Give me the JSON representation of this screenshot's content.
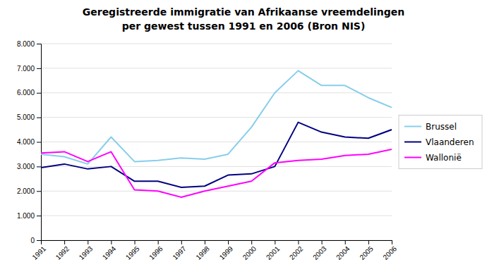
{
  "chart_data": {
    "type": "line",
    "title": "Geregistreerde immigratie van Afrikaanse vreemdelingen",
    "subtitle": "per gewest tussen 1991 en 2006 (Bron NIS)",
    "x": [
      1991,
      1992,
      1993,
      1994,
      1995,
      1996,
      1997,
      1998,
      1999,
      2000,
      2001,
      2002,
      2003,
      2004,
      2005,
      2006
    ],
    "xlim": [
      1991,
      2006
    ],
    "xticks": [
      1991,
      1992,
      1993,
      1994,
      1995,
      1996,
      1997,
      1998,
      1999,
      2000,
      2001,
      2002,
      2003,
      2004,
      2005,
      2006
    ],
    "ylim": [
      0,
      8000
    ],
    "yticks": [
      0,
      {
        "value": 1000,
        "label": "1.000"
      },
      {
        "value": 2000,
        "label": "2.000"
      },
      {
        "value": 3000,
        "label": "3.000"
      },
      {
        "value": 4000,
        "label": "4.000"
      },
      {
        "value": 5000,
        "label": "5.000"
      },
      {
        "value": 6000,
        "label": "6.000"
      },
      {
        "value": 7000,
        "label": "7.000"
      },
      {
        "value": 8000,
        "label": "8.000"
      }
    ],
    "grid": true,
    "legend": "right",
    "series": [
      {
        "name": "Brussel",
        "color": "#87CEEB",
        "values": [
          3500,
          3400,
          3100,
          4200,
          3200,
          3250,
          3350,
          3300,
          3500,
          4600,
          6000,
          6900,
          6300,
          6300,
          5800,
          5400
        ]
      },
      {
        "name": "Vlaanderen",
        "color": "#000080",
        "values": [
          2950,
          3100,
          2900,
          3000,
          2400,
          2400,
          2150,
          2200,
          2650,
          2700,
          3000,
          4800,
          4400,
          4200,
          4150,
          4500
        ]
      },
      {
        "name": "Wallonië",
        "color": "#FF00FF",
        "values": [
          3550,
          3600,
          3200,
          3600,
          2050,
          2000,
          1750,
          2000,
          2200,
          2400,
          3150,
          3250,
          3300,
          3450,
          3500,
          3700
        ]
      }
    ]
  }
}
